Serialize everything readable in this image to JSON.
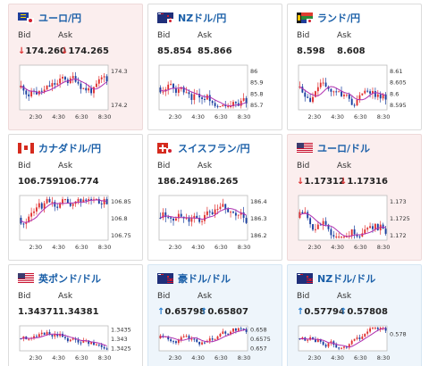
{
  "labels": {
    "bid": "Bid",
    "ask": "Ask"
  },
  "colors": {
    "up_arrow": "#2a7fd0",
    "down_arrow": "#dd3333",
    "title": "#1a5fa8",
    "bull_candle": "#e03030",
    "bear_candle": "#1a3fa0",
    "ma_line": "#b030b0"
  },
  "cards": [
    {
      "title": "ユーロ/円",
      "flag": "eu-jp",
      "bid": "174.260",
      "ask": "174.265",
      "trend": "down",
      "y_ticks": [
        "174.3",
        "174.2"
      ],
      "x_ticks": [
        "2:30",
        "4:30",
        "6:30",
        "8:30"
      ],
      "chart_data": {
        "type": "candlestick",
        "ylim": [
          174.14,
          174.36
        ]
      }
    },
    {
      "title": "NZドル/円",
      "flag": "nz-jp",
      "bid": "85.854",
      "ask": "85.866",
      "trend": "none",
      "y_ticks": [
        "86",
        "85.9",
        "85.8",
        "85.7"
      ],
      "x_ticks": [
        "2:30",
        "4:30",
        "6:30",
        "8:30"
      ],
      "chart_data": {
        "type": "candlestick",
        "ylim": [
          85.68,
          86.03
        ]
      }
    },
    {
      "title": "ランド/円",
      "flag": "za-jp",
      "bid": "8.598",
      "ask": "8.608",
      "trend": "none",
      "y_ticks": [
        "8.61",
        "8.605",
        "8.6",
        "8.595"
      ],
      "x_ticks": [
        "2:30",
        "4:30",
        "6:30",
        "8:30"
      ],
      "chart_data": {
        "type": "candlestick",
        "ylim": [
          8.593,
          8.613
        ]
      }
    },
    {
      "title": "カナダドル/円",
      "flag": "ca-jp",
      "bid": "106.759",
      "ask": "106.774",
      "trend": "none",
      "y_ticks": [
        "106.85",
        "106.8",
        "106.75"
      ],
      "x_ticks": [
        "2:30",
        "4:30",
        "6:30",
        "8:30"
      ],
      "chart_data": {
        "type": "candlestick",
        "ylim": [
          106.72,
          106.88
        ]
      }
    },
    {
      "title": "スイスフラン/円",
      "flag": "ch-jp",
      "bid": "186.249",
      "ask": "186.265",
      "trend": "none",
      "y_ticks": [
        "186.4",
        "186.3",
        "186.2"
      ],
      "x_ticks": [
        "2:30",
        "4:30",
        "6:30",
        "8:30"
      ],
      "chart_data": {
        "type": "candlestick",
        "ylim": [
          186.17,
          186.47
        ]
      }
    },
    {
      "title": "ユーロ/ドル",
      "flag": "us",
      "bid": "1.17312",
      "ask": "1.17316",
      "trend": "down",
      "y_ticks": [
        "1.173",
        "1.1725",
        "1.172"
      ],
      "x_ticks": [
        "2:30",
        "4:30",
        "6:30",
        "8:30"
      ],
      "chart_data": {
        "type": "candlestick",
        "ylim": [
          1.1716,
          1.1736
        ]
      }
    },
    {
      "title": "英ポンド/ドル",
      "flag": "us",
      "bid": "1.34371",
      "ask": "1.34381",
      "trend": "none",
      "y_ticks": [
        "1.3435",
        "1.343",
        "1.3425"
      ],
      "x_ticks": [
        "2:30",
        "4:30",
        "6:30",
        "8:30"
      ],
      "chart_data": {
        "type": "candlestick",
        "ylim": [
          1.3422,
          1.3438
        ]
      }
    },
    {
      "title": "豪ドル/ドル",
      "flag": "au-us",
      "bid": "0.65798",
      "ask": "0.65807",
      "trend": "up",
      "y_ticks": [
        "0.658",
        "0.6575",
        "0.657"
      ],
      "x_ticks": [
        "2:30",
        "4:30",
        "6:30",
        "8:30"
      ],
      "chart_data": {
        "type": "candlestick",
        "ylim": [
          0.6568,
          0.6582
        ]
      }
    },
    {
      "title": "NZドル/ドル",
      "flag": "nz-us",
      "bid": "0.57794",
      "ask": "0.57808",
      "trend": "up",
      "y_ticks": [
        "0.578"
      ],
      "x_ticks": [
        "2:30",
        "4:30",
        "6:30",
        "8:30"
      ],
      "chart_data": {
        "type": "candlestick",
        "ylim": [
          0.5772,
          0.5782
        ]
      }
    }
  ]
}
